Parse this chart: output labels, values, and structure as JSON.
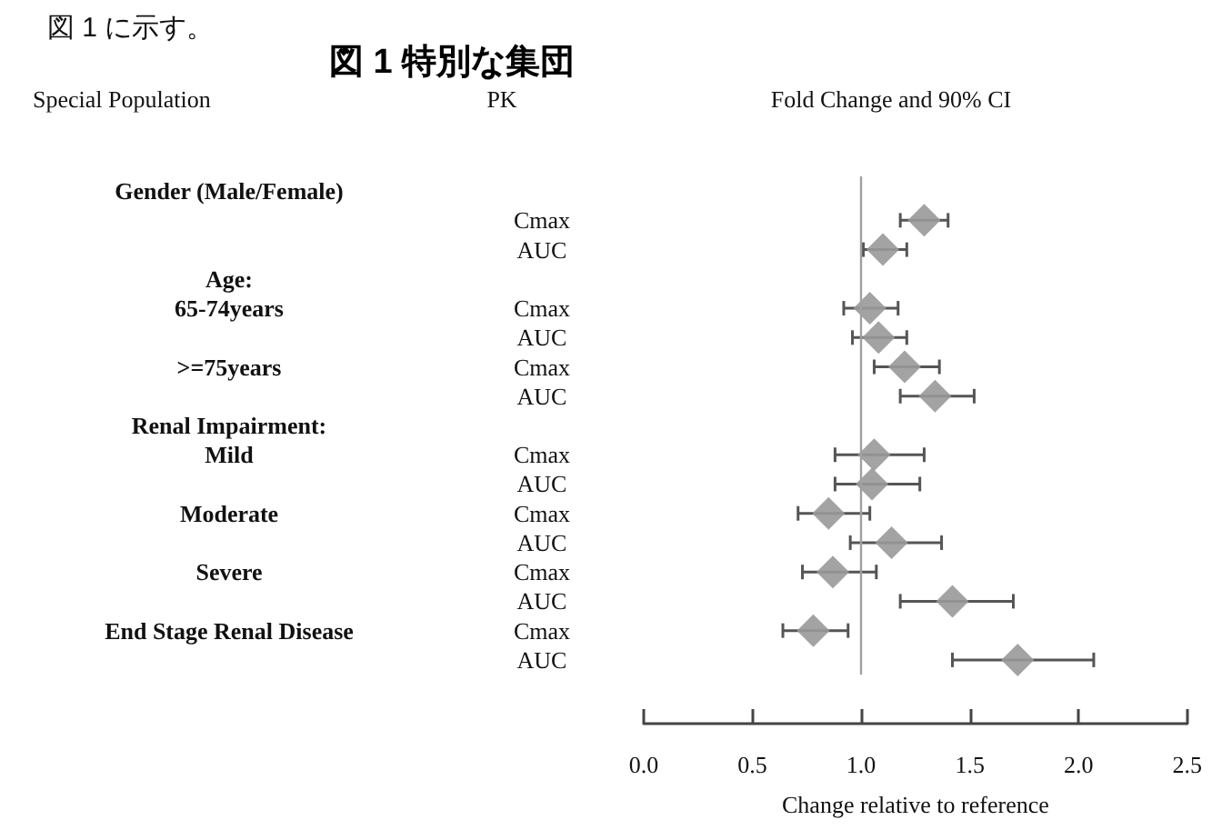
{
  "chart_data": {
    "type": "scatter",
    "title": "図 1 特別な集団",
    "annotations": [
      "図 1 に示す。",
      "Special Population",
      "PK",
      "Fold Change and 90% CI"
    ],
    "xlabel": "Change relative to reference",
    "categories": [
      null,
      "Cmax",
      "AUC",
      null,
      "Cmax",
      "AUC",
      "Cmax",
      "AUC",
      null,
      "Cmax",
      "AUC",
      "Cmax",
      "AUC",
      "Cmax",
      "AUC",
      "Cmax",
      "AUC"
    ],
    "y2_categories": [
      "Gender (Male/Female)",
      null,
      null,
      "Age:",
      "65-74years",
      null,
      ">=75years",
      null,
      "Renal Impairment:",
      "Mild",
      null,
      "Moderate",
      null,
      "Severe",
      null,
      "End Stage Renal Disease",
      null
    ],
    "series": [
      {
        "color": "#999999",
        "values": [
          null,
          1.29,
          1.1,
          null,
          1.04,
          1.08,
          1.2,
          1.34,
          null,
          1.06,
          1.05,
          0.85,
          1.14,
          0.87,
          1.42,
          0.78,
          1.72
        ],
        "errors": [
          null,
          [
            1.18,
            1.4
          ],
          [
            1.01,
            1.21
          ],
          null,
          [
            0.92,
            1.17
          ],
          [
            0.96,
            1.21
          ],
          [
            1.06,
            1.36
          ],
          [
            1.18,
            1.52
          ],
          null,
          [
            0.88,
            1.29
          ],
          [
            0.88,
            1.27
          ],
          [
            0.71,
            1.04
          ],
          [
            0.95,
            1.37
          ],
          [
            0.73,
            1.07
          ],
          [
            1.18,
            1.7
          ],
          [
            0.64,
            0.94
          ],
          [
            1.42,
            2.07
          ]
        ]
      }
    ],
    "xlim": [
      0,
      2.5
    ],
    "xticks": [
      {
        "value": 0,
        "label": "0.0"
      },
      {
        "value": 0.5,
        "label": "0.5"
      },
      {
        "value": 1,
        "label": "1.0"
      },
      {
        "value": 1.5,
        "label": "1.5"
      },
      {
        "value": 2,
        "label": "2.0"
      },
      {
        "value": 2.5,
        "label": "2.5"
      }
    ],
    "ref_lines": [
      {
        "axis": "x",
        "value": 1,
        "color": "#a0a0a0"
      }
    ],
    "orientation": "horizontal",
    "marker": "diamond",
    "grid": false
  }
}
